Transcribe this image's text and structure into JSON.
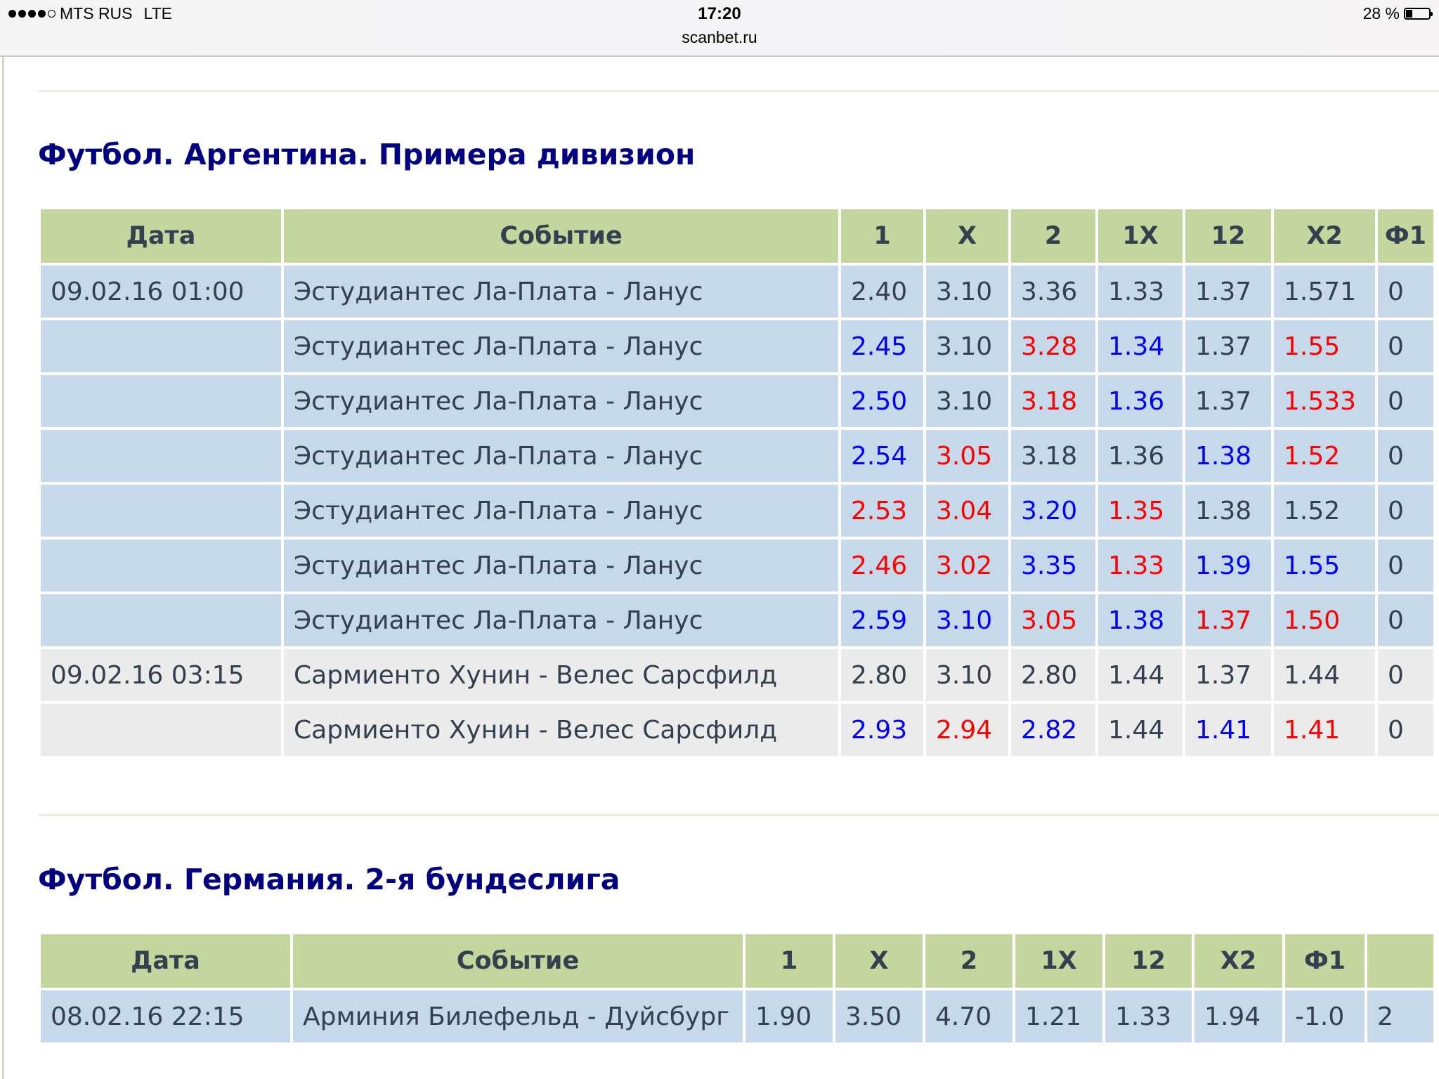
{
  "status_bar": {
    "carrier": "MTS RUS",
    "network": "LTE",
    "signal_bars": 4,
    "signal_max": 5,
    "time": "17:20",
    "url": "scanbet.ru",
    "battery_text": "28 %",
    "battery_level": 0.28
  },
  "colors": {
    "title": "#000080",
    "header_bg": "#c4d69d",
    "row_bg_group1": "#c6d9ea",
    "row_bg_group2": "#ebebeb",
    "up": "#0000ff",
    "down": "#ff0000",
    "text": "#34404f"
  },
  "sections": [
    {
      "title": "Футбол. Аргентина. Примера дивизион",
      "headers": [
        "Дата",
        "Событие",
        "1",
        "X",
        "2",
        "1X",
        "12",
        "X2",
        "Ф1"
      ],
      "rows": [
        {
          "group": 0,
          "date": "09.02.16 01:00",
          "event": "Эстудиантес Ла-Плата - Ланус",
          "odds": [
            {
              "v": "2.40",
              "c": ""
            },
            {
              "v": "3.10",
              "c": ""
            },
            {
              "v": "3.36",
              "c": ""
            },
            {
              "v": "1.33",
              "c": ""
            },
            {
              "v": "1.37",
              "c": ""
            },
            {
              "v": "1.571",
              "c": ""
            },
            {
              "v": "0",
              "c": ""
            }
          ]
        },
        {
          "group": 0,
          "date": "",
          "event": "Эстудиантес Ла-Плата - Ланус",
          "odds": [
            {
              "v": "2.45",
              "c": "blue"
            },
            {
              "v": "3.10",
              "c": ""
            },
            {
              "v": "3.28",
              "c": "red"
            },
            {
              "v": "1.34",
              "c": "blue"
            },
            {
              "v": "1.37",
              "c": ""
            },
            {
              "v": "1.55",
              "c": "red"
            },
            {
              "v": "0",
              "c": ""
            }
          ]
        },
        {
          "group": 0,
          "date": "",
          "event": "Эстудиантес Ла-Плата - Ланус",
          "odds": [
            {
              "v": "2.50",
              "c": "blue"
            },
            {
              "v": "3.10",
              "c": ""
            },
            {
              "v": "3.18",
              "c": "red"
            },
            {
              "v": "1.36",
              "c": "blue"
            },
            {
              "v": "1.37",
              "c": ""
            },
            {
              "v": "1.533",
              "c": "red"
            },
            {
              "v": "0",
              "c": ""
            }
          ]
        },
        {
          "group": 0,
          "date": "",
          "event": "Эстудиантес Ла-Плата - Ланус",
          "odds": [
            {
              "v": "2.54",
              "c": "blue"
            },
            {
              "v": "3.05",
              "c": "red"
            },
            {
              "v": "3.18",
              "c": ""
            },
            {
              "v": "1.36",
              "c": ""
            },
            {
              "v": "1.38",
              "c": "blue"
            },
            {
              "v": "1.52",
              "c": "red"
            },
            {
              "v": "0",
              "c": ""
            }
          ]
        },
        {
          "group": 0,
          "date": "",
          "event": "Эстудиантес Ла-Плата - Ланус",
          "odds": [
            {
              "v": "2.53",
              "c": "red"
            },
            {
              "v": "3.04",
              "c": "red"
            },
            {
              "v": "3.20",
              "c": "blue"
            },
            {
              "v": "1.35",
              "c": "red"
            },
            {
              "v": "1.38",
              "c": ""
            },
            {
              "v": "1.52",
              "c": ""
            },
            {
              "v": "0",
              "c": ""
            }
          ]
        },
        {
          "group": 0,
          "date": "",
          "event": "Эстудиантес Ла-Плата - Ланус",
          "odds": [
            {
              "v": "2.46",
              "c": "red"
            },
            {
              "v": "3.02",
              "c": "red"
            },
            {
              "v": "3.35",
              "c": "blue"
            },
            {
              "v": "1.33",
              "c": "red"
            },
            {
              "v": "1.39",
              "c": "blue"
            },
            {
              "v": "1.55",
              "c": "blue"
            },
            {
              "v": "0",
              "c": ""
            }
          ]
        },
        {
          "group": 0,
          "date": "",
          "event": "Эстудиантес Ла-Плата - Ланус",
          "odds": [
            {
              "v": "2.59",
              "c": "blue"
            },
            {
              "v": "3.10",
              "c": "blue"
            },
            {
              "v": "3.05",
              "c": "red"
            },
            {
              "v": "1.38",
              "c": "blue"
            },
            {
              "v": "1.37",
              "c": "red"
            },
            {
              "v": "1.50",
              "c": "red"
            },
            {
              "v": "0",
              "c": ""
            }
          ]
        },
        {
          "group": 1,
          "date": "09.02.16 03:15",
          "event": "Сармиенто Хунин - Велес Сарсфилд",
          "odds": [
            {
              "v": "2.80",
              "c": ""
            },
            {
              "v": "3.10",
              "c": ""
            },
            {
              "v": "2.80",
              "c": ""
            },
            {
              "v": "1.44",
              "c": ""
            },
            {
              "v": "1.37",
              "c": ""
            },
            {
              "v": "1.44",
              "c": ""
            },
            {
              "v": "0",
              "c": ""
            }
          ]
        },
        {
          "group": 1,
          "date": "",
          "event": "Сармиенто Хунин - Велес Сарсфилд",
          "odds": [
            {
              "v": "2.93",
              "c": "blue"
            },
            {
              "v": "2.94",
              "c": "red"
            },
            {
              "v": "2.82",
              "c": "blue"
            },
            {
              "v": "1.44",
              "c": ""
            },
            {
              "v": "1.41",
              "c": "blue"
            },
            {
              "v": "1.41",
              "c": "red"
            },
            {
              "v": "0",
              "c": ""
            }
          ]
        }
      ]
    },
    {
      "title": "Футбол. Германия. 2-я бундеслига",
      "headers": [
        "Дата",
        "Событие",
        "1",
        "X",
        "2",
        "1X",
        "12",
        "X2",
        "Ф1",
        ""
      ],
      "rows": [
        {
          "group": 0,
          "date": "08.02.16 22:15",
          "event": "Арминия Билефельд - Дуйсбург",
          "odds": [
            {
              "v": "1.90",
              "c": ""
            },
            {
              "v": "3.50",
              "c": ""
            },
            {
              "v": "4.70",
              "c": ""
            },
            {
              "v": "1.21",
              "c": ""
            },
            {
              "v": "1.33",
              "c": ""
            },
            {
              "v": "1.94",
              "c": ""
            },
            {
              "v": "-1.0",
              "c": ""
            },
            {
              "v": "2",
              "c": ""
            }
          ]
        }
      ]
    }
  ]
}
